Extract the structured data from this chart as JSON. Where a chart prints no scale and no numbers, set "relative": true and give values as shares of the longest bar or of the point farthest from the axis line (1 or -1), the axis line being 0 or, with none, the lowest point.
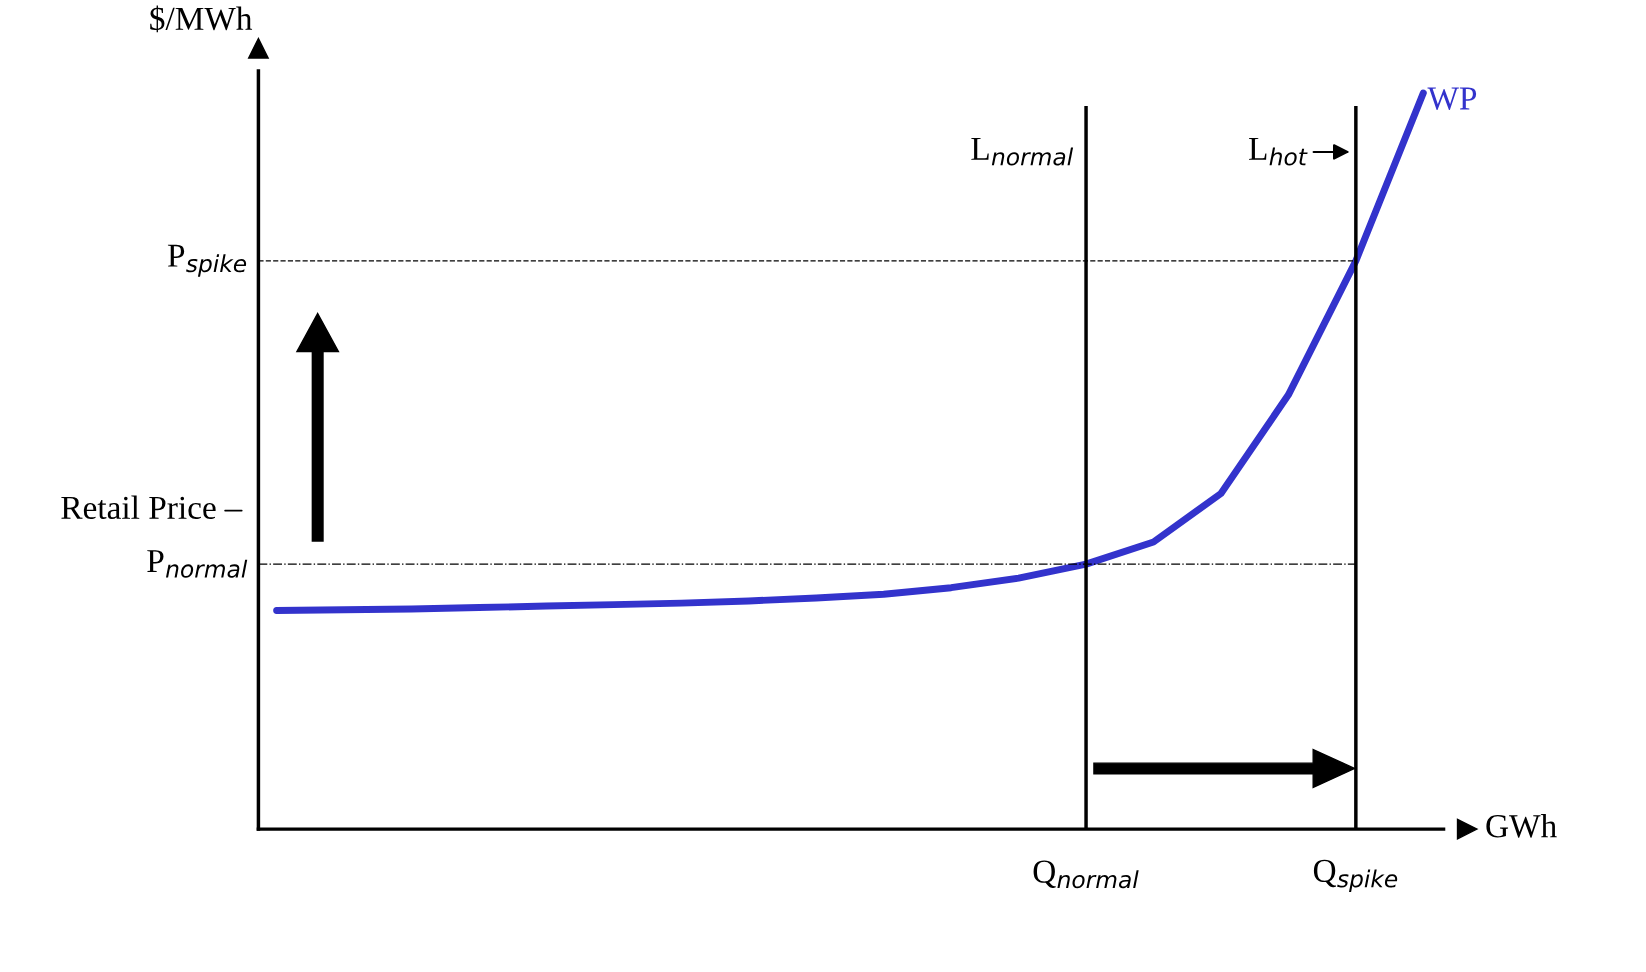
{
  "chart_data": {
    "type": "line",
    "relative": true,
    "xlabel": "GWh",
    "ylabel": "$/MWh",
    "categories": [
      null,
      null,
      null,
      null,
      null,
      null,
      null,
      null,
      null,
      null,
      null,
      null,
      "Q$_{normal}$",
      null,
      null,
      null,
      "Q$_{spike}$",
      null
    ],
    "series": [
      {
        "name": "WP",
        "color": "#3333cc",
        "values": [
          0.297,
          0.298,
          0.299,
          0.301,
          0.303,
          0.305,
          0.307,
          0.31,
          0.314,
          0.319,
          0.328,
          0.341,
          0.36,
          0.39,
          0.456,
          0.59,
          0.772,
          1.0
        ]
      }
    ],
    "ref_lines": [
      {
        "axis": "x",
        "value": "Q$_{normal}$",
        "label": "L$_{normal}$",
        "color": "#000000",
        "line_style": "solid"
      },
      {
        "axis": "x",
        "value": "Q$_{spike}$",
        "label": "L$_{hot}$",
        "color": "#000000",
        "line_style": "solid"
      },
      {
        "axis": "y",
        "value": 0.772,
        "label": "P$_{spike}$",
        "color": "#000000",
        "line_style": "dashed"
      },
      {
        "axis": "y",
        "value": 0.36,
        "label": "P$_{normal}$",
        "color": "#000000",
        "line_style": "dashdot"
      }
    ],
    "annotations": [
      "Retail Price"
    ],
    "grid": false,
    "legend": false,
    "marker": "none",
    "line_style": "solid"
  }
}
